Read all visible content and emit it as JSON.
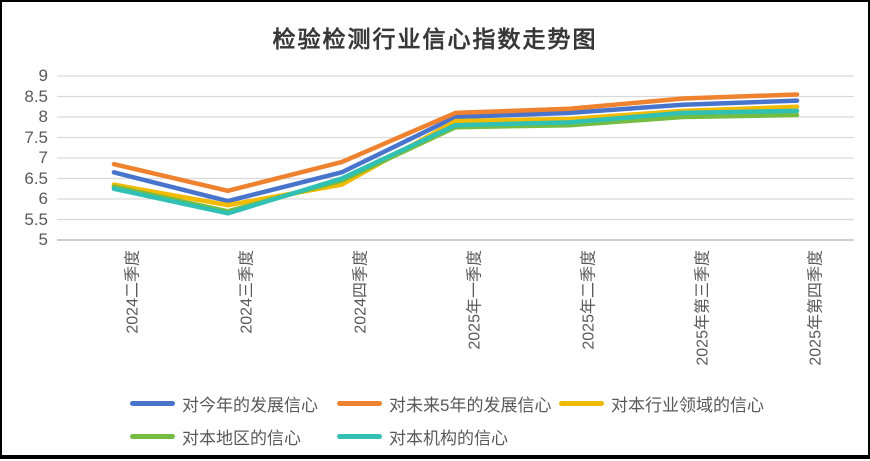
{
  "chart_data": {
    "type": "line",
    "title": "检验检测行业信心指数走势图",
    "categories": [
      "2024二季度",
      "2024三季度",
      "2024四季度",
      "2025年一季度",
      "2025年二季度",
      "2025年第三季度",
      "2025年第四季度"
    ],
    "series": [
      {
        "name": "对今年的发展信心",
        "color": "#4874CB",
        "values": [
          6.65,
          5.95,
          6.65,
          8.0,
          8.1,
          8.3,
          8.4
        ]
      },
      {
        "name": "对未来5年的发展信心",
        "color": "#EE822F",
        "values": [
          6.85,
          6.2,
          6.9,
          8.1,
          8.2,
          8.45,
          8.55
        ]
      },
      {
        "name": "对本行业领域的信心",
        "color": "#F2BA02",
        "values": [
          6.35,
          5.85,
          6.35,
          7.9,
          7.95,
          8.15,
          8.25
        ]
      },
      {
        "name": "对本地区的信心",
        "color": "#75BD42",
        "values": [
          6.3,
          5.7,
          6.45,
          7.75,
          7.8,
          8.0,
          8.05
        ]
      },
      {
        "name": "对本机构的信心",
        "color": "#30C0B4",
        "values": [
          6.25,
          5.65,
          6.5,
          7.8,
          7.87,
          8.1,
          8.15
        ]
      }
    ],
    "ylim": [
      5,
      9
    ],
    "y_ticks": [
      "9",
      "8.5",
      "8",
      "7.5",
      "7",
      "6.5",
      "6",
      "5.5",
      "5"
    ],
    "xlabel": "",
    "ylabel": "",
    "grid": true,
    "gridline_color": "#D9D9D9",
    "axis_line_color": "#BFBFBF",
    "legend_position": "bottom"
  }
}
